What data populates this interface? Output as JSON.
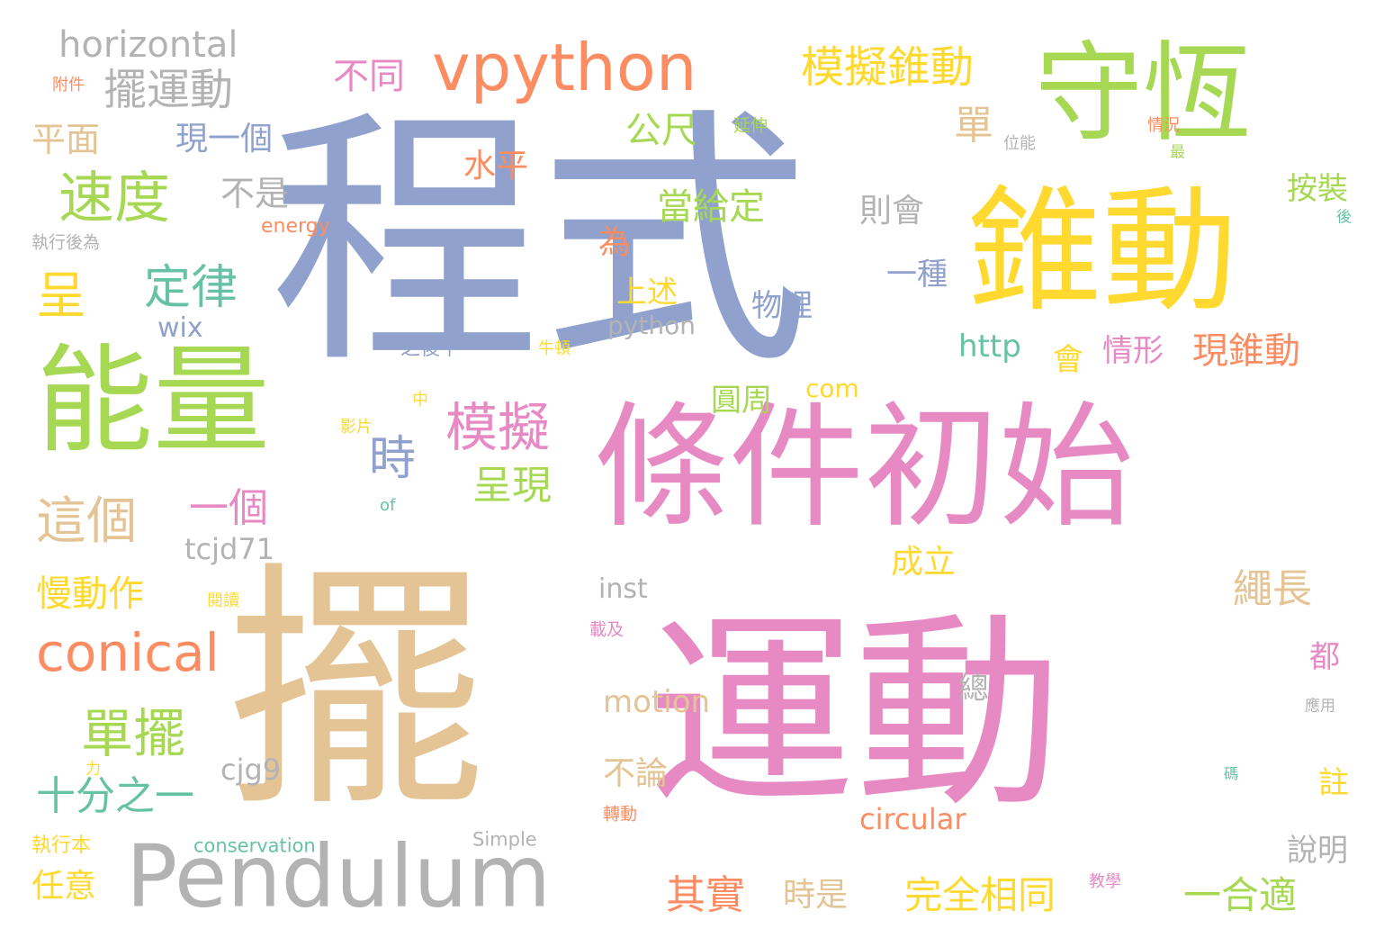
{
  "palette": {
    "blue": "#8fa1cc",
    "pink": "#e78ac3",
    "tan": "#e4c494",
    "green": "#a6d854",
    "yellow": "#ffd92f",
    "orange": "#fc8d62",
    "teal": "#66c2a5",
    "gray": "#b3b3b3"
  },
  "words": [
    {
      "text": "程式",
      "color": "blue",
      "weight": 1.0
    },
    {
      "text": "擺",
      "color": "tan",
      "weight": 0.98
    },
    {
      "text": "運動",
      "color": "pink",
      "weight": 0.92
    },
    {
      "text": "條件初始",
      "color": "pink",
      "weight": 0.82
    },
    {
      "text": "錐動",
      "color": "yellow",
      "weight": 0.76
    },
    {
      "text": "守恆",
      "color": "green",
      "weight": 0.72
    },
    {
      "text": "能量",
      "color": "green",
      "weight": 0.7
    },
    {
      "text": "Pendulum",
      "color": "gray",
      "weight": 0.6
    },
    {
      "text": "vpython",
      "color": "orange",
      "weight": 0.48
    },
    {
      "text": "conical",
      "color": "orange",
      "weight": 0.38
    },
    {
      "text": "速度",
      "color": "green",
      "weight": 0.36
    },
    {
      "text": "模擬",
      "color": "pink",
      "weight": 0.36
    },
    {
      "text": "單擺",
      "color": "green",
      "weight": 0.34
    },
    {
      "text": "這個",
      "color": "tan",
      "weight": 0.34
    },
    {
      "text": "定律",
      "color": "teal",
      "weight": 0.32
    },
    {
      "text": "擺運動",
      "color": "gray",
      "weight": 0.3
    },
    {
      "text": "模擬錐動",
      "color": "yellow",
      "weight": 0.3
    },
    {
      "text": "呈",
      "color": "yellow",
      "weight": 0.3
    },
    {
      "text": "時",
      "color": "blue",
      "weight": 0.3
    },
    {
      "text": "horizontal",
      "color": "gray",
      "weight": 0.28
    },
    {
      "text": "十分之一",
      "color": "teal",
      "weight": 0.28
    },
    {
      "text": "呈現",
      "color": "green",
      "weight": 0.28
    },
    {
      "text": "完全相同",
      "color": "yellow",
      "weight": 0.27
    },
    {
      "text": "其實",
      "color": "orange",
      "weight": 0.26
    },
    {
      "text": "一合適",
      "color": "green",
      "weight": 0.26
    },
    {
      "text": "繩長",
      "color": "tan",
      "weight": 0.26
    },
    {
      "text": "單",
      "color": "tan",
      "weight": 0.26
    },
    {
      "text": "一個",
      "color": "pink",
      "weight": 0.25
    },
    {
      "text": "現錐動",
      "color": "orange",
      "weight": 0.25
    },
    {
      "text": "慢動作",
      "color": "yellow",
      "weight": 0.24
    },
    {
      "text": "平面",
      "color": "tan",
      "weight": 0.24
    },
    {
      "text": "不同",
      "color": "pink",
      "weight": 0.24
    },
    {
      "text": "公尺",
      "color": "green",
      "weight": 0.24
    },
    {
      "text": "當給定",
      "color": "green",
      "weight": 0.23
    },
    {
      "text": "水平",
      "color": "orange",
      "weight": 0.23
    },
    {
      "text": "不是",
      "color": "gray",
      "weight": 0.23
    },
    {
      "text": "現一個",
      "color": "blue",
      "weight": 0.22
    },
    {
      "text": "則會",
      "color": "gray",
      "weight": 0.22
    },
    {
      "text": "motion",
      "color": "tan",
      "weight": 0.22
    },
    {
      "text": "為",
      "color": "orange",
      "weight": 0.22
    },
    {
      "text": "成立",
      "color": "yellow",
      "weight": 0.22
    },
    {
      "text": "上述",
      "color": "yellow",
      "weight": 0.22
    },
    {
      "text": "任意",
      "color": "yellow",
      "weight": 0.22
    },
    {
      "text": "不論",
      "color": "tan",
      "weight": 0.22
    },
    {
      "text": "時是",
      "color": "tan",
      "weight": 0.22
    },
    {
      "text": "circular",
      "color": "orange",
      "weight": 0.21
    },
    {
      "text": "cjg9",
      "color": "gray",
      "weight": 0.21
    },
    {
      "text": "一種",
      "color": "blue",
      "weight": 0.21
    },
    {
      "text": "物理",
      "color": "blue",
      "weight": 0.21
    },
    {
      "text": "情形",
      "color": "pink",
      "weight": 0.21
    },
    {
      "text": "會",
      "color": "yellow",
      "weight": 0.21
    },
    {
      "text": "圓周",
      "color": "green",
      "weight": 0.21
    },
    {
      "text": "http",
      "color": "teal",
      "weight": 0.21
    },
    {
      "text": "按裝",
      "color": "green",
      "weight": 0.2
    },
    {
      "text": "都",
      "color": "pink",
      "weight": 0.2
    },
    {
      "text": "總",
      "color": "gray",
      "weight": 0.2
    },
    {
      "text": "註",
      "color": "yellow",
      "weight": 0.2
    },
    {
      "text": "說明",
      "color": "gray",
      "weight": 0.2
    },
    {
      "text": "tcjd71",
      "color": "gray",
      "weight": 0.2
    },
    {
      "text": "inst",
      "color": "gray",
      "weight": 0.19
    },
    {
      "text": "wix",
      "color": "blue",
      "weight": 0.19
    },
    {
      "text": "python",
      "color": "gray",
      "weight": 0.17
    },
    {
      "text": "com",
      "color": "yellow",
      "weight": 0.17
    },
    {
      "text": "energy",
      "color": "orange",
      "weight": 0.15
    },
    {
      "text": "conservation",
      "color": "teal",
      "weight": 0.14
    },
    {
      "text": "Simple",
      "color": "gray",
      "weight": 0.14
    },
    {
      "text": "之後下",
      "color": "blue",
      "weight": 0.14
    },
    {
      "text": "執行後為",
      "color": "gray",
      "weight": 0.13
    },
    {
      "text": "執行本",
      "color": "yellow",
      "weight": 0.13
    },
    {
      "text": "延伸",
      "color": "green",
      "weight": 0.13
    },
    {
      "text": "附件",
      "color": "orange",
      "weight": 0.13
    },
    {
      "text": "位能",
      "color": "gray",
      "weight": 0.12
    },
    {
      "text": "情況",
      "color": "orange",
      "weight": 0.12
    },
    {
      "text": "載及",
      "color": "pink",
      "weight": 0.12
    },
    {
      "text": "閱讀",
      "color": "yellow",
      "weight": 0.12
    },
    {
      "text": "轉動",
      "color": "orange",
      "weight": 0.12
    },
    {
      "text": "教學",
      "color": "pink",
      "weight": 0.12
    },
    {
      "text": "影片",
      "color": "yellow",
      "weight": 0.12
    },
    {
      "text": "牛頓",
      "color": "yellow",
      "weight": 0.12
    },
    {
      "text": "應用",
      "color": "gray",
      "weight": 0.12
    },
    {
      "text": "中",
      "color": "yellow",
      "weight": 0.11
    },
    {
      "text": "of",
      "color": "teal",
      "weight": 0.11
    },
    {
      "text": "最",
      "color": "green",
      "weight": 0.11
    },
    {
      "text": "後",
      "color": "teal",
      "weight": 0.11
    },
    {
      "text": "力",
      "color": "yellow",
      "weight": 0.11
    },
    {
      "text": "碼",
      "color": "teal",
      "weight": 0.11
    }
  ]
}
